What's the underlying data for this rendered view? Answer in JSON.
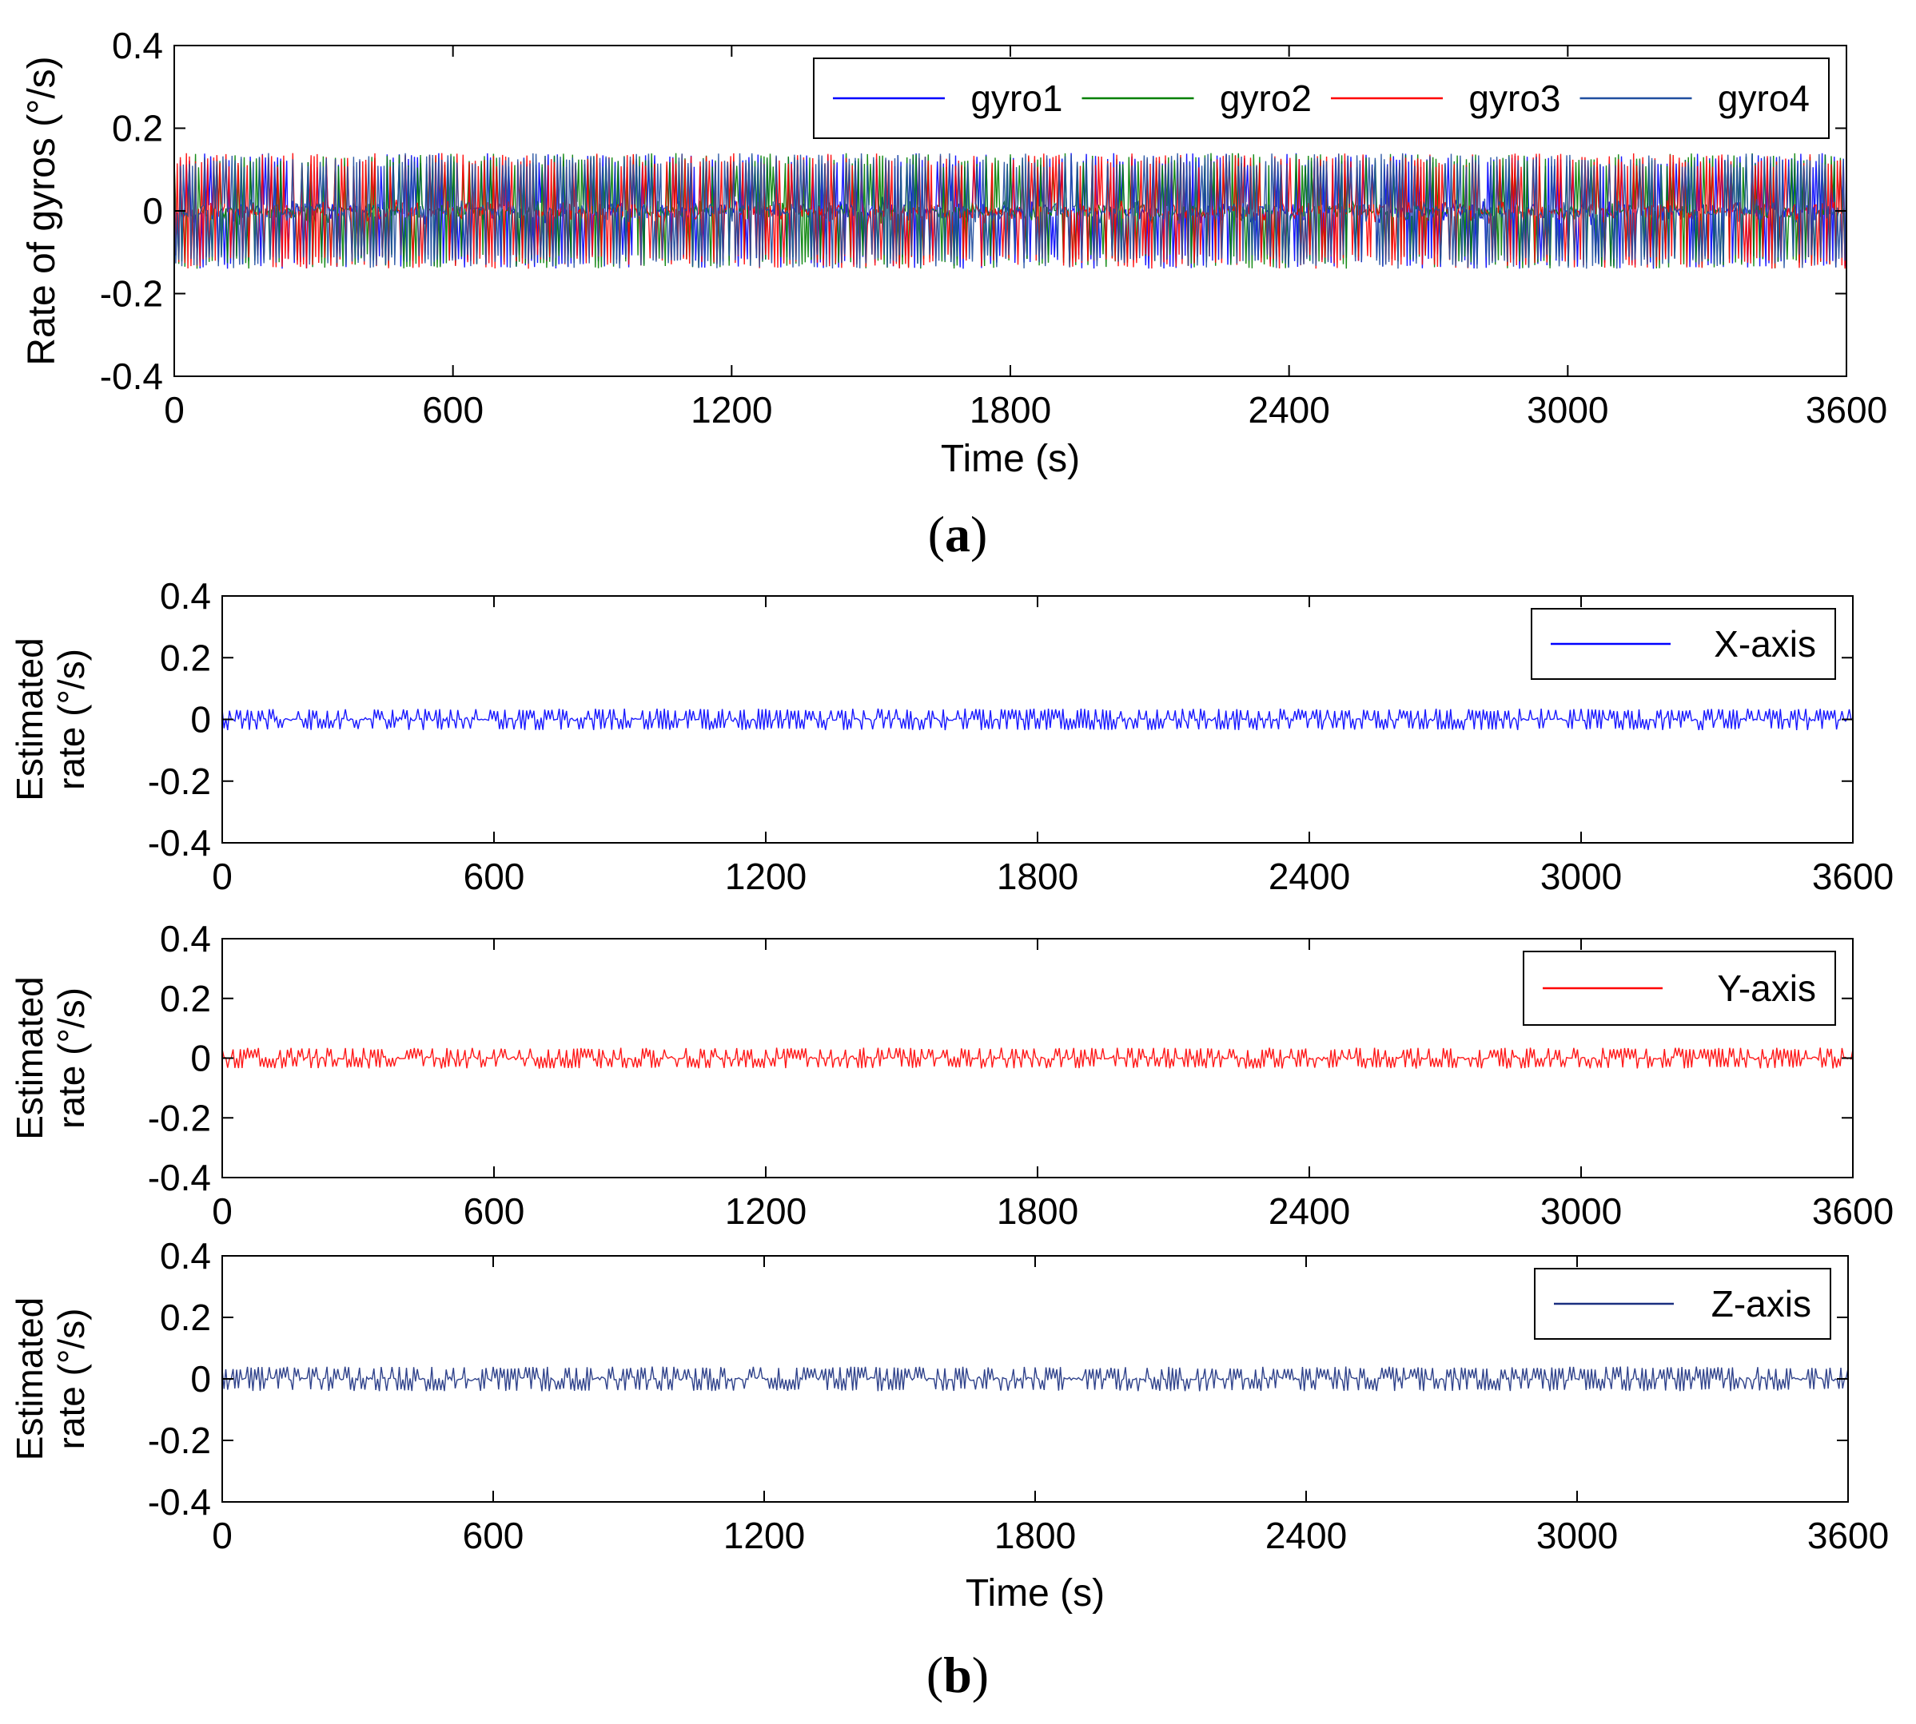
{
  "chart_data": [
    {
      "id": "a",
      "type": "line",
      "ylabel": "Rate of gyros (°/s)",
      "xlabel": "Time (s)",
      "xlim": [
        0,
        3600
      ],
      "ylim": [
        -0.4,
        0.4
      ],
      "xticks": [
        0,
        600,
        1200,
        1800,
        2400,
        3000,
        3600
      ],
      "yticks": [
        0.4,
        0.2,
        0,
        -0.2,
        -0.4
      ],
      "ytick_labels": [
        "0.4",
        "0.2",
        "0",
        "-0.2",
        "-0.4"
      ],
      "legend_position": "top-right",
      "series": [
        {
          "name": "gyro1",
          "color": "#0000ff",
          "amplitude": 0.14,
          "seed": 11
        },
        {
          "name": "gyro2",
          "color": "#008000",
          "amplitude": 0.14,
          "seed": 23
        },
        {
          "name": "gyro3",
          "color": "#ff0000",
          "amplitude": 0.14,
          "seed": 37
        },
        {
          "name": "gyro4",
          "color": "#1f4e9f",
          "amplitude": 0.14,
          "seed": 53
        }
      ]
    },
    {
      "id": "b1",
      "type": "line",
      "ylabel_lines": [
        "Estimated",
        "rate (°/s)"
      ],
      "xlabel": "",
      "xlim": [
        0,
        3600
      ],
      "ylim": [
        -0.4,
        0.4
      ],
      "xticks": [
        0,
        600,
        1200,
        1800,
        2400,
        3000,
        3600
      ],
      "yticks": [
        0.4,
        0.2,
        0,
        -0.2,
        -0.4
      ],
      "ytick_labels": [
        "0.4",
        "0.2",
        "0",
        "-0.2",
        "-0.4"
      ],
      "legend_position": "top-right",
      "series": [
        {
          "name": "X-axis",
          "color": "#0000ff",
          "amplitude": 0.035,
          "seed": 71
        }
      ]
    },
    {
      "id": "b2",
      "type": "line",
      "ylabel_lines": [
        "Estimated",
        "rate (°/s)"
      ],
      "xlabel": "",
      "xlim": [
        0,
        3600
      ],
      "ylim": [
        -0.4,
        0.4
      ],
      "xticks": [
        0,
        600,
        1200,
        1800,
        2400,
        3000,
        3600
      ],
      "yticks": [
        0.4,
        0.2,
        0,
        -0.2,
        -0.4
      ],
      "ytick_labels": [
        "0.4",
        "0.2",
        "0",
        "-0.2",
        "-0.4"
      ],
      "legend_position": "top-right",
      "series": [
        {
          "name": "Y-axis",
          "color": "#ff0000",
          "amplitude": 0.035,
          "seed": 89
        }
      ]
    },
    {
      "id": "b3",
      "type": "line",
      "ylabel_lines": [
        "Estimated",
        "rate (°/s)"
      ],
      "xlabel": "Time (s)",
      "xlim": [
        0,
        3600
      ],
      "ylim": [
        -0.4,
        0.4
      ],
      "xticks": [
        0,
        600,
        1200,
        1800,
        2400,
        3000,
        3600
      ],
      "yticks": [
        0.4,
        0.2,
        0,
        -0.2,
        -0.4
      ],
      "ytick_labels": [
        "0.4",
        "0.2",
        "0",
        "-0.2",
        "-0.4"
      ],
      "legend_position": "top-right",
      "series": [
        {
          "name": "Z-axis",
          "color": "#1a2f80",
          "amplitude": 0.04,
          "seed": 97
        }
      ]
    }
  ],
  "captions": {
    "a": {
      "open": "(",
      "letter": "a",
      "close": ")"
    },
    "b": {
      "open": "(",
      "letter": "b",
      "close": ")"
    }
  }
}
